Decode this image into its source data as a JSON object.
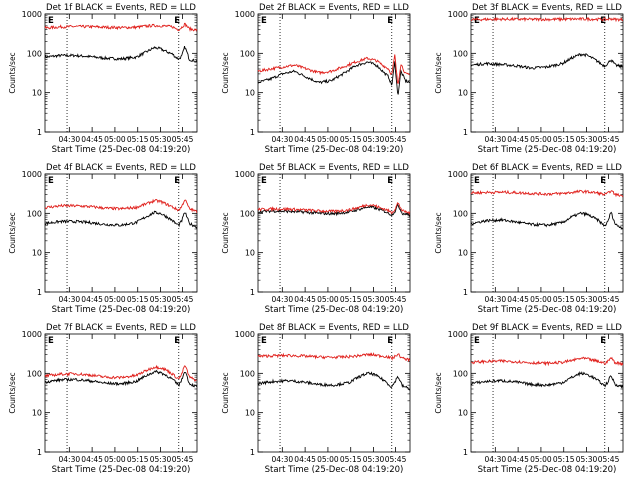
{
  "chart_data": [
    {
      "type": "line",
      "title": "Det 1f BLACK = Events, RED = LLD",
      "xlabel": "Start Time (25-Dec-08 04:19:20)",
      "ylabel": "Counts/sec",
      "yscale": "log",
      "ylim": [
        1,
        1000
      ],
      "xlim": [
        0,
        100
      ],
      "x_ticks": [
        "04:30",
        "04:45",
        "05:00",
        "05:15",
        "05:30",
        "05:45"
      ],
      "y_ticks": [
        "1",
        "10",
        "100",
        "1000"
      ],
      "markers": [
        "E",
        "E"
      ],
      "grid": false,
      "series": [
        {
          "color": "#000000",
          "x": [
            0,
            10,
            20,
            30,
            40,
            50,
            60,
            66,
            72,
            76,
            80,
            84,
            86,
            88,
            90,
            92,
            95,
            100
          ],
          "y": [
            80,
            88,
            88,
            82,
            75,
            72,
            80,
            105,
            140,
            130,
            110,
            95,
            80,
            72,
            85,
            150,
            70,
            62
          ]
        },
        {
          "color": "#e0201c",
          "x": [
            0,
            10,
            20,
            30,
            40,
            50,
            60,
            66,
            72,
            76,
            80,
            84,
            86,
            88,
            90,
            92,
            95,
            100
          ],
          "y": [
            440,
            470,
            480,
            475,
            460,
            450,
            460,
            490,
            510,
            500,
            490,
            470,
            430,
            400,
            460,
            560,
            420,
            390
          ]
        }
      ]
    },
    {
      "type": "line",
      "title": "Det 2f BLACK = Events, RED = LLD",
      "xlabel": "Start Time (25-Dec-08 04:19:20)",
      "ylabel": "Counts/sec",
      "yscale": "log",
      "ylim": [
        1,
        1000
      ],
      "xlim": [
        0,
        100
      ],
      "x_ticks": [
        "04:30",
        "04:45",
        "05:00",
        "05:15",
        "05:30",
        "05:45"
      ],
      "y_ticks": [
        "1",
        "10",
        "100",
        "1000"
      ],
      "markers": [
        "E",
        "E"
      ],
      "grid": false,
      "series": [
        {
          "color": "#000000",
          "x": [
            0,
            8,
            16,
            24,
            32,
            40,
            48,
            56,
            64,
            72,
            78,
            82,
            86,
            88,
            90,
            92,
            94,
            97,
            100
          ],
          "y": [
            18,
            22,
            30,
            35,
            25,
            18,
            20,
            30,
            48,
            60,
            50,
            35,
            25,
            15,
            60,
            8,
            35,
            20,
            18
          ]
        },
        {
          "color": "#e0201c",
          "x": [
            0,
            8,
            16,
            24,
            32,
            40,
            48,
            56,
            64,
            72,
            78,
            82,
            86,
            88,
            90,
            92,
            94,
            97,
            100
          ],
          "y": [
            35,
            40,
            45,
            50,
            40,
            32,
            35,
            45,
            60,
            75,
            65,
            50,
            40,
            28,
            90,
            15,
            55,
            30,
            28
          ]
        }
      ]
    },
    {
      "type": "line",
      "title": "Det 3f BLACK = Events, RED = LLD",
      "xlabel": "Start Time (25-Dec-08 04:19:20)",
      "ylabel": "Counts/sec",
      "yscale": "log",
      "ylim": [
        1,
        1000
      ],
      "xlim": [
        0,
        100
      ],
      "x_ticks": [
        "04:30",
        "04:45",
        "05:00",
        "05:15",
        "05:30",
        "05:45"
      ],
      "y_ticks": [
        "1",
        "10",
        "100",
        "1000"
      ],
      "markers": [
        "E",
        "E"
      ],
      "grid": false,
      "series": [
        {
          "color": "#000000",
          "x": [
            0,
            10,
            20,
            30,
            40,
            50,
            60,
            66,
            72,
            76,
            80,
            84,
            86,
            88,
            90,
            92,
            95,
            100
          ],
          "y": [
            50,
            55,
            52,
            48,
            42,
            45,
            55,
            75,
            95,
            90,
            75,
            60,
            52,
            48,
            55,
            70,
            50,
            45
          ]
        },
        {
          "color": "#e0201c",
          "x": [
            0,
            10,
            20,
            30,
            40,
            50,
            60,
            66,
            72,
            76,
            80,
            84,
            86,
            88,
            90,
            92,
            95,
            100
          ],
          "y": [
            720,
            730,
            740,
            735,
            730,
            730,
            735,
            740,
            745,
            745,
            740,
            735,
            730,
            725,
            730,
            760,
            725,
            720
          ]
        }
      ]
    },
    {
      "type": "line",
      "title": "Det 4f BLACK = Events, RED = LLD",
      "xlabel": "Start Time (25-Dec-08 04:19:20)",
      "ylabel": "Counts/sec",
      "yscale": "log",
      "ylim": [
        1,
        1000
      ],
      "xlim": [
        0,
        100
      ],
      "x_ticks": [
        "04:30",
        "04:45",
        "05:00",
        "05:15",
        "05:30",
        "05:45"
      ],
      "y_ticks": [
        "1",
        "10",
        "100",
        "1000"
      ],
      "markers": [
        "E",
        "E"
      ],
      "grid": false,
      "series": [
        {
          "color": "#000000",
          "x": [
            0,
            10,
            20,
            30,
            40,
            50,
            60,
            66,
            72,
            76,
            80,
            84,
            86,
            88,
            90,
            92,
            95,
            100
          ],
          "y": [
            55,
            62,
            62,
            58,
            52,
            50,
            58,
            80,
            105,
            100,
            82,
            65,
            55,
            50,
            65,
            110,
            55,
            45
          ]
        },
        {
          "color": "#e0201c",
          "x": [
            0,
            10,
            20,
            30,
            40,
            50,
            60,
            66,
            72,
            76,
            80,
            84,
            86,
            88,
            90,
            92,
            95,
            100
          ],
          "y": [
            140,
            155,
            155,
            148,
            135,
            130,
            142,
            170,
            210,
            200,
            170,
            145,
            130,
            120,
            150,
            230,
            130,
            110
          ]
        }
      ]
    },
    {
      "type": "line",
      "title": "Det 5f BLACK = Events, RED = LLD",
      "xlabel": "Start Time (25-Dec-08 04:19:20)",
      "ylabel": "Counts/sec",
      "yscale": "log",
      "ylim": [
        1,
        1000
      ],
      "xlim": [
        0,
        100
      ],
      "x_ticks": [
        "04:30",
        "04:45",
        "05:00",
        "05:15",
        "05:30",
        "05:45"
      ],
      "y_ticks": [
        "1",
        "10",
        "100",
        "1000"
      ],
      "markers": [
        "E",
        "E"
      ],
      "grid": false,
      "series": [
        {
          "color": "#000000",
          "x": [
            0,
            10,
            20,
            30,
            40,
            50,
            60,
            66,
            72,
            76,
            80,
            84,
            86,
            88,
            90,
            92,
            95,
            100
          ],
          "y": [
            110,
            115,
            112,
            108,
            100,
            98,
            108,
            125,
            145,
            140,
            125,
            110,
            100,
            92,
            110,
            165,
            100,
            90
          ]
        },
        {
          "color": "#e0201c",
          "x": [
            0,
            10,
            20,
            30,
            40,
            50,
            60,
            66,
            72,
            76,
            80,
            84,
            86,
            88,
            90,
            92,
            95,
            100
          ],
          "y": [
            125,
            130,
            128,
            122,
            115,
            112,
            122,
            140,
            165,
            160,
            140,
            125,
            115,
            105,
            125,
            185,
            115,
            102
          ]
        }
      ]
    },
    {
      "type": "line",
      "title": "Det 6f BLACK = Events, RED = LLD",
      "xlabel": "Start Time (25-Dec-08 04:19:20)",
      "ylabel": "Counts/sec",
      "yscale": "log",
      "ylim": [
        1,
        1000
      ],
      "xlim": [
        0,
        100
      ],
      "x_ticks": [
        "04:30",
        "04:45",
        "05:00",
        "05:15",
        "05:30",
        "05:45"
      ],
      "y_ticks": [
        "1",
        "10",
        "100",
        "1000"
      ],
      "markers": [
        "E",
        "E"
      ],
      "grid": false,
      "series": [
        {
          "color": "#000000",
          "x": [
            0,
            10,
            20,
            30,
            40,
            50,
            60,
            66,
            72,
            76,
            80,
            84,
            86,
            88,
            90,
            92,
            95,
            100
          ],
          "y": [
            55,
            65,
            68,
            60,
            52,
            50,
            58,
            80,
            100,
            95,
            80,
            65,
            55,
            48,
            60,
            110,
            52,
            42
          ]
        },
        {
          "color": "#e0201c",
          "x": [
            0,
            10,
            20,
            30,
            40,
            50,
            60,
            66,
            72,
            76,
            80,
            84,
            86,
            88,
            90,
            92,
            95,
            100
          ],
          "y": [
            330,
            340,
            345,
            335,
            320,
            310,
            320,
            340,
            360,
            355,
            340,
            325,
            310,
            300,
            320,
            380,
            300,
            280
          ]
        }
      ]
    },
    {
      "type": "line",
      "title": "Det 7f BLACK = Events, RED = LLD",
      "xlabel": "Start Time (25-Dec-08 04:19:20)",
      "ylabel": "Counts/sec",
      "yscale": "log",
      "ylim": [
        1,
        1000
      ],
      "xlim": [
        0,
        100
      ],
      "x_ticks": [
        "04:30",
        "04:45",
        "05:00",
        "05:15",
        "05:30",
        "05:45"
      ],
      "y_ticks": [
        "1",
        "10",
        "100",
        "1000"
      ],
      "markers": [
        "E",
        "E"
      ],
      "grid": false,
      "series": [
        {
          "color": "#000000",
          "x": [
            0,
            10,
            20,
            30,
            40,
            50,
            60,
            66,
            72,
            76,
            80,
            84,
            86,
            88,
            90,
            92,
            95,
            100
          ],
          "y": [
            60,
            68,
            70,
            64,
            56,
            54,
            62,
            85,
            110,
            105,
            88,
            70,
            58,
            50,
            68,
            120,
            55,
            45
          ]
        },
        {
          "color": "#e0201c",
          "x": [
            0,
            10,
            20,
            30,
            40,
            50,
            60,
            66,
            72,
            76,
            80,
            84,
            86,
            88,
            90,
            92,
            95,
            100
          ],
          "y": [
            85,
            95,
            98,
            90,
            80,
            78,
            88,
            115,
            145,
            140,
            120,
            95,
            82,
            72,
            95,
            165,
            80,
            65
          ]
        }
      ]
    },
    {
      "type": "line",
      "title": "Det 8f BLACK = Events, RED = LLD",
      "xlabel": "Start Time (25-Dec-08 04:19:20)",
      "ylabel": "Counts/sec",
      "yscale": "log",
      "ylim": [
        1,
        1000
      ],
      "xlim": [
        0,
        100
      ],
      "x_ticks": [
        "04:30",
        "04:45",
        "05:00",
        "05:15",
        "05:30",
        "05:45"
      ],
      "y_ticks": [
        "1",
        "10",
        "100",
        "1000"
      ],
      "markers": [
        "E",
        "E"
      ],
      "grid": false,
      "series": [
        {
          "color": "#000000",
          "x": [
            0,
            10,
            20,
            30,
            40,
            50,
            60,
            66,
            72,
            76,
            80,
            84,
            86,
            88,
            90,
            92,
            95,
            100
          ],
          "y": [
            55,
            62,
            65,
            60,
            52,
            50,
            58,
            80,
            100,
            95,
            78,
            62,
            52,
            45,
            60,
            85,
            48,
            40
          ]
        },
        {
          "color": "#e0201c",
          "x": [
            0,
            10,
            20,
            30,
            40,
            50,
            60,
            66,
            72,
            76,
            80,
            84,
            86,
            88,
            90,
            92,
            95,
            100
          ],
          "y": [
            270,
            280,
            285,
            275,
            260,
            255,
            265,
            280,
            300,
            295,
            280,
            270,
            255,
            240,
            265,
            310,
            240,
            220
          ]
        }
      ]
    },
    {
      "type": "line",
      "title": "Det 9f BLACK = Events, RED = LLD",
      "xlabel": "Start Time (25-Dec-08 04:19:20)",
      "ylabel": "Counts/sec",
      "yscale": "log",
      "ylim": [
        1,
        1000
      ],
      "xlim": [
        0,
        100
      ],
      "x_ticks": [
        "04:30",
        "04:45",
        "05:00",
        "05:15",
        "05:30",
        "05:45"
      ],
      "y_ticks": [
        "1",
        "10",
        "100",
        "1000"
      ],
      "markers": [
        "E",
        "E"
      ],
      "grid": false,
      "series": [
        {
          "color": "#000000",
          "x": [
            0,
            10,
            20,
            30,
            40,
            50,
            60,
            66,
            72,
            76,
            80,
            84,
            86,
            88,
            90,
            92,
            95,
            100
          ],
          "y": [
            55,
            62,
            65,
            60,
            52,
            50,
            58,
            78,
            100,
            95,
            80,
            64,
            55,
            48,
            60,
            88,
            52,
            45
          ]
        },
        {
          "color": "#e0201c",
          "x": [
            0,
            10,
            20,
            30,
            40,
            50,
            60,
            66,
            72,
            76,
            80,
            84,
            86,
            88,
            90,
            92,
            95,
            100
          ],
          "y": [
            190,
            200,
            205,
            198,
            185,
            180,
            190,
            210,
            240,
            235,
            215,
            200,
            190,
            180,
            200,
            250,
            185,
            175
          ]
        }
      ]
    }
  ]
}
